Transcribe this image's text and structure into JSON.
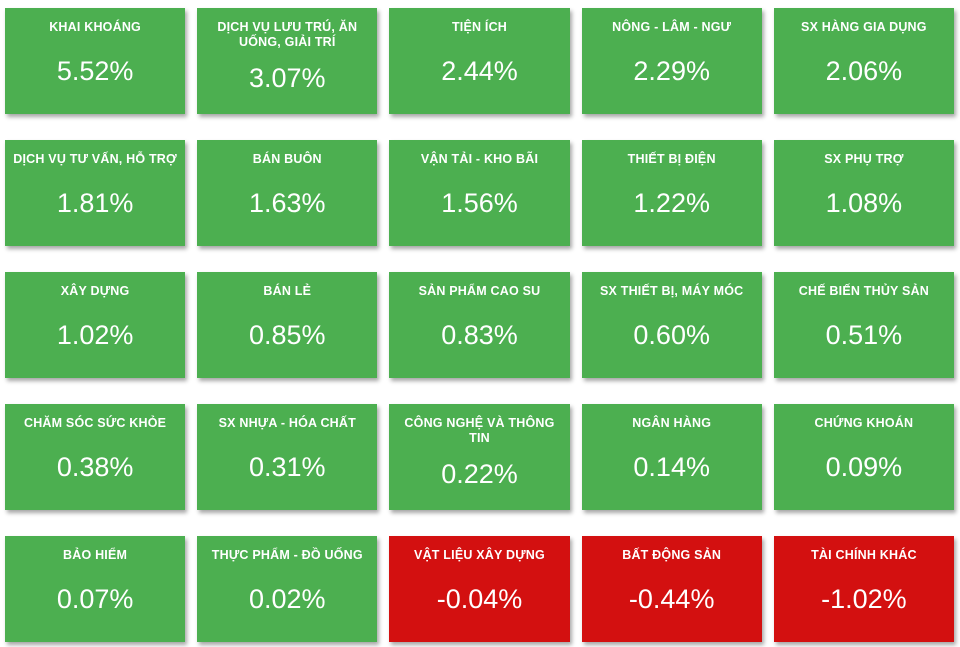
{
  "colors": {
    "positive_tile": "#4caf50",
    "negative_tile": "#d31010",
    "text": "#ffffff"
  },
  "tiles": [
    {
      "label": "KHAI KHOÁNG",
      "value": "5.52%",
      "state": "up"
    },
    {
      "label": "DỊCH VỤ LƯU TRÚ, ĂN UỐNG, GIẢI TRÍ",
      "value": "3.07%",
      "state": "up"
    },
    {
      "label": "TIỆN ÍCH",
      "value": "2.44%",
      "state": "up"
    },
    {
      "label": "NÔNG - LÂM - NGƯ",
      "value": "2.29%",
      "state": "up"
    },
    {
      "label": "SX HÀNG GIA DỤNG",
      "value": "2.06%",
      "state": "up"
    },
    {
      "label": "DỊCH VỤ TƯ VẤN, HỖ TRỢ",
      "value": "1.81%",
      "state": "up"
    },
    {
      "label": "BÁN BUÔN",
      "value": "1.63%",
      "state": "up"
    },
    {
      "label": "VẬN TẢI - KHO BÃI",
      "value": "1.56%",
      "state": "up"
    },
    {
      "label": "THIẾT BỊ ĐIỆN",
      "value": "1.22%",
      "state": "up"
    },
    {
      "label": "SX PHỤ TRỢ",
      "value": "1.08%",
      "state": "up"
    },
    {
      "label": "XÂY DỰNG",
      "value": "1.02%",
      "state": "up"
    },
    {
      "label": "BÁN LẺ",
      "value": "0.85%",
      "state": "up"
    },
    {
      "label": "SẢN PHẨM CAO SU",
      "value": "0.83%",
      "state": "up"
    },
    {
      "label": "SX THIẾT BỊ, MÁY MÓC",
      "value": "0.60%",
      "state": "up"
    },
    {
      "label": "CHẾ BIẾN THỦY SẢN",
      "value": "0.51%",
      "state": "up"
    },
    {
      "label": "CHĂM SÓC SỨC KHỎE",
      "value": "0.38%",
      "state": "up"
    },
    {
      "label": "SX NHỰA - HÓA CHẤT",
      "value": "0.31%",
      "state": "up"
    },
    {
      "label": "CÔNG NGHỆ VÀ THÔNG TIN",
      "value": "0.22%",
      "state": "up"
    },
    {
      "label": "NGÂN HÀNG",
      "value": "0.14%",
      "state": "up"
    },
    {
      "label": "CHỨNG KHOÁN",
      "value": "0.09%",
      "state": "up"
    },
    {
      "label": "BẢO HIỂM",
      "value": "0.07%",
      "state": "up"
    },
    {
      "label": "THỰC PHẨM - ĐỒ UỐNG",
      "value": "0.02%",
      "state": "up"
    },
    {
      "label": "VẬT LIỆU XÂY DỰNG",
      "value": "-0.04%",
      "state": "down"
    },
    {
      "label": "BẤT ĐỘNG SẢN",
      "value": "-0.44%",
      "state": "down"
    },
    {
      "label": "TÀI CHÍNH KHÁC",
      "value": "-1.02%",
      "state": "down"
    }
  ],
  "chart_data": {
    "type": "heatmap",
    "title": "",
    "legend_position": "none",
    "categories": [
      "KHAI KHOÁNG",
      "DỊCH VỤ LƯU TRÚ, ĂN UỐNG, GIẢI TRÍ",
      "TIỆN ÍCH",
      "NÔNG - LÂM - NGƯ",
      "SX HÀNG GIA DỤNG",
      "DỊCH VỤ TƯ VẤN, HỖ TRỢ",
      "BÁN BUÔN",
      "VẬN TẢI - KHO BÃI",
      "THIẾT BỊ ĐIỆN",
      "SX PHỤ TRỢ",
      "XÂY DỰNG",
      "BÁN LẺ",
      "SẢN PHẨM CAO SU",
      "SX THIẾT BỊ, MÁY MÓC",
      "CHẾ BIẾN THỦY SẢN",
      "CHĂM SÓC SỨC KHỎE",
      "SX NHỰA - HÓA CHẤT",
      "CÔNG NGHỆ VÀ THÔNG TIN",
      "NGÂN HÀNG",
      "CHỨNG KHOÁN",
      "BẢO HIỂM",
      "THỰC PHẨM - ĐỒ UỐNG",
      "VẬT LIỆU XÂY DỰNG",
      "BẤT ĐỘNG SẢN",
      "TÀI CHÍNH KHÁC"
    ],
    "values": [
      5.52,
      3.07,
      2.44,
      2.29,
      2.06,
      1.81,
      1.63,
      1.56,
      1.22,
      1.08,
      1.02,
      0.85,
      0.83,
      0.6,
      0.51,
      0.38,
      0.31,
      0.22,
      0.14,
      0.09,
      0.07,
      0.02,
      -0.04,
      -0.44,
      -1.02
    ],
    "value_unit": "%",
    "layout": "5x5 grid, sorted descending left-to-right top-to-bottom",
    "color_rule": "value >= 0 green (#4caf50), value < 0 red (#d31010)"
  }
}
